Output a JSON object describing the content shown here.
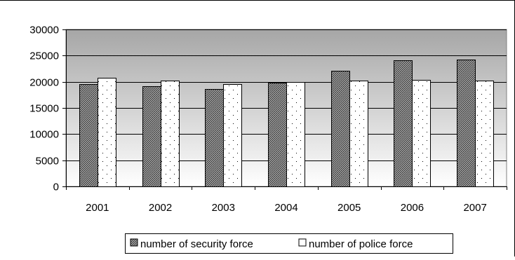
{
  "chart_data": {
    "type": "bar",
    "title": "",
    "xlabel": "",
    "ylabel": "",
    "categories": [
      "2001",
      "2002",
      "2003",
      "2004",
      "2005",
      "2006",
      "2007"
    ],
    "series": [
      {
        "name": "number of security force",
        "values": [
          19600,
          19200,
          18600,
          19800,
          22100,
          24100,
          24300
        ],
        "pattern": "crosshatch",
        "color": "#808080"
      },
      {
        "name": "number of police force",
        "values": [
          20800,
          20200,
          19600,
          19900,
          20200,
          20400,
          20200
        ],
        "pattern": "dots",
        "color": "#ffffff"
      }
    ],
    "ylim": [
      0,
      30000
    ],
    "yticks": [
      0,
      5000,
      10000,
      15000,
      20000,
      25000,
      30000
    ],
    "grid": true,
    "legend_position": "bottom",
    "plot_background": "gradient gray (top) to white (bottom)"
  }
}
